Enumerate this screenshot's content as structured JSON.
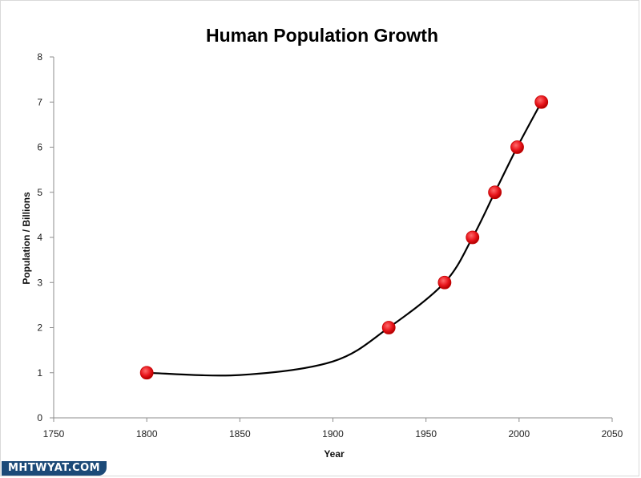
{
  "chart_data": {
    "type": "scatter",
    "title": "Human Population Growth",
    "xlabel": "Year",
    "ylabel": "Population / Billions",
    "xlim": [
      1750,
      2050
    ],
    "ylim": [
      0,
      8
    ],
    "x_ticks": [
      1750,
      1800,
      1850,
      1900,
      1950,
      2000,
      2050
    ],
    "y_ticks": [
      0,
      1,
      2,
      3,
      4,
      5,
      6,
      7,
      8
    ],
    "grid": false,
    "legend": "none",
    "series": [
      {
        "x": [
          1800,
          1930,
          1960,
          1975,
          1987,
          1999,
          2012
        ],
        "y": [
          1,
          2,
          3,
          4,
          5,
          6,
          7
        ],
        "marker_color": "#e8141b"
      }
    ],
    "trendline": {
      "type": "smooth curve",
      "color": "#000000",
      "x": [
        1800,
        1850,
        1900,
        1930,
        1960,
        1975,
        1987,
        1999,
        2012
      ],
      "y": [
        1.0,
        0.95,
        1.25,
        2.0,
        3.0,
        4.0,
        5.0,
        6.0,
        7.0
      ]
    }
  },
  "watermark": "MHTWYAT.COM"
}
